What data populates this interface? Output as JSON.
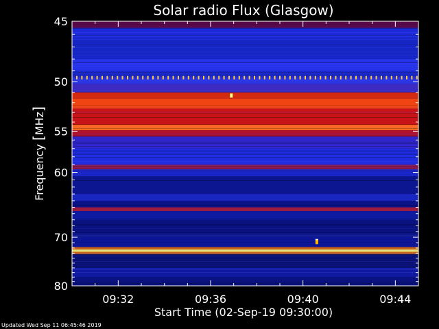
{
  "chart_data": {
    "type": "heatmap",
    "title": "Solar radio Flux (Glasgow)",
    "xlabel": "Start Time (02-Sep-19 09:30:00)",
    "ylabel_main": "Frequency ",
    "ylabel_unit": "MHz",
    "x_ticks": [
      "09:32",
      "09:36",
      "09:40",
      "09:44"
    ],
    "x_tick_minutes": [
      32,
      36,
      40,
      44
    ],
    "x_range_minutes": [
      30.0,
      45.0
    ],
    "y_ticks": [
      45,
      50,
      55,
      60,
      70,
      80
    ],
    "y_range": [
      45,
      80
    ],
    "y_scale": "reciprocal",
    "colors": {
      "background": "#000000",
      "frame": "#ffffff",
      "low": "#000060",
      "mid": "#1a2be6",
      "high_red": "#c81414",
      "peak_yellow": "#ffff60"
    },
    "bands": [
      {
        "f0": 45.0,
        "f1": 45.5,
        "color": "#5a0a4a"
      },
      {
        "f0": 45.5,
        "f1": 46.5,
        "color": "#1c2ad8"
      },
      {
        "f0": 46.5,
        "f1": 48.0,
        "color": "#1626c4"
      },
      {
        "f0": 48.0,
        "f1": 49.0,
        "color": "#2633e8"
      },
      {
        "f0": 49.0,
        "f1": 49.6,
        "color": "#1a28c8"
      },
      {
        "f0": 49.6,
        "f1": 50.2,
        "color": "#2a34e0"
      },
      {
        "f0": 50.2,
        "f1": 51.0,
        "color": "#3b2bc0"
      },
      {
        "f0": 51.0,
        "f1": 51.6,
        "color": "#d32a10"
      },
      {
        "f0": 51.6,
        "f1": 52.6,
        "color": "#f04512"
      },
      {
        "f0": 52.6,
        "f1": 54.3,
        "color": "#c81418"
      },
      {
        "f0": 54.3,
        "f1": 54.9,
        "color": "#ff6a20"
      },
      {
        "f0": 54.9,
        "f1": 55.6,
        "color": "#b0102a"
      },
      {
        "f0": 55.6,
        "f1": 57.0,
        "color": "#3025c8"
      },
      {
        "f0": 57.0,
        "f1": 59.0,
        "color": "#1f2ce0"
      },
      {
        "f0": 59.0,
        "f1": 59.6,
        "color": "#8c1a50"
      },
      {
        "f0": 59.6,
        "f1": 60.5,
        "color": "#1a26c8"
      },
      {
        "f0": 60.5,
        "f1": 63.0,
        "color": "#0c1690"
      },
      {
        "f0": 63.0,
        "f1": 64.0,
        "color": "#1a26c0"
      },
      {
        "f0": 64.0,
        "f1": 65.0,
        "color": "#0a1288"
      },
      {
        "f0": 65.0,
        "f1": 65.6,
        "color": "#9a1a40"
      },
      {
        "f0": 65.6,
        "f1": 67.0,
        "color": "#0e1aa0"
      },
      {
        "f0": 67.0,
        "f1": 70.0,
        "color": "#0a1280"
      },
      {
        "f0": 70.0,
        "f1": 71.8,
        "color": "#0e1698"
      },
      {
        "f0": 71.8,
        "f1": 72.3,
        "color": "#c86420"
      },
      {
        "f0": 72.3,
        "f1": 72.7,
        "color": "#ffff70"
      },
      {
        "f0": 72.7,
        "f1": 73.2,
        "color": "#c86420"
      },
      {
        "f0": 73.2,
        "f1": 76.0,
        "color": "#0a1278"
      },
      {
        "f0": 76.0,
        "f1": 78.0,
        "color": "#101aa0"
      },
      {
        "f0": 78.0,
        "f1": 80.0,
        "color": "#0a1280"
      }
    ],
    "pulse_train": {
      "f": 49.6,
      "color": "#ffcc40"
    },
    "bursts": [
      {
        "minute": 36.9,
        "f": 51.3,
        "color": "#ffff80"
      },
      {
        "minute": 40.6,
        "f": 70.7,
        "color": "#ffffd0"
      },
      {
        "minute": 40.6,
        "f": 70.9,
        "color": "#ffb000"
      }
    ]
  },
  "footer": {
    "updated": "Updated Wed Sep 11 06:45:46 2019"
  }
}
